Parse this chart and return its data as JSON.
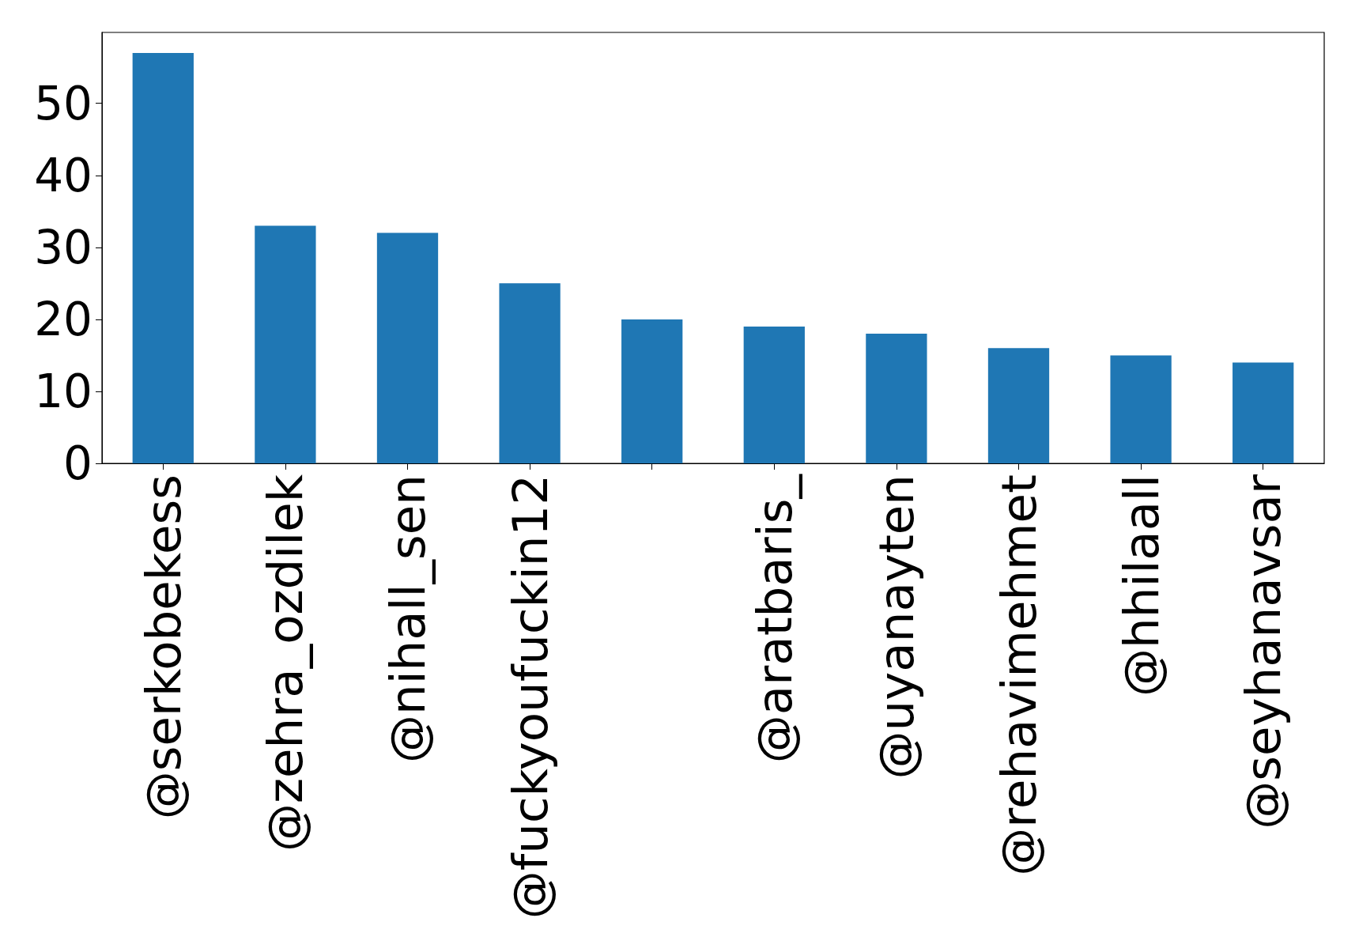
{
  "chart_data": {
    "type": "bar",
    "categories": [
      "@serkobekess",
      "@zehra_ozdilek",
      "@nihall_sen",
      "@fuckyoufuckin12",
      null,
      "@aratbaris_",
      "@uyanayten",
      "@rehavimehmet",
      "@hhilaall",
      "@seyhanavsar"
    ],
    "values": [
      57,
      33,
      32,
      25,
      20,
      19,
      18,
      16,
      15,
      14
    ],
    "color": "#1f77b4",
    "ylim": [
      0,
      59.85
    ],
    "yticks": [
      0,
      10,
      20,
      30,
      40,
      50
    ],
    "grid": false
  }
}
